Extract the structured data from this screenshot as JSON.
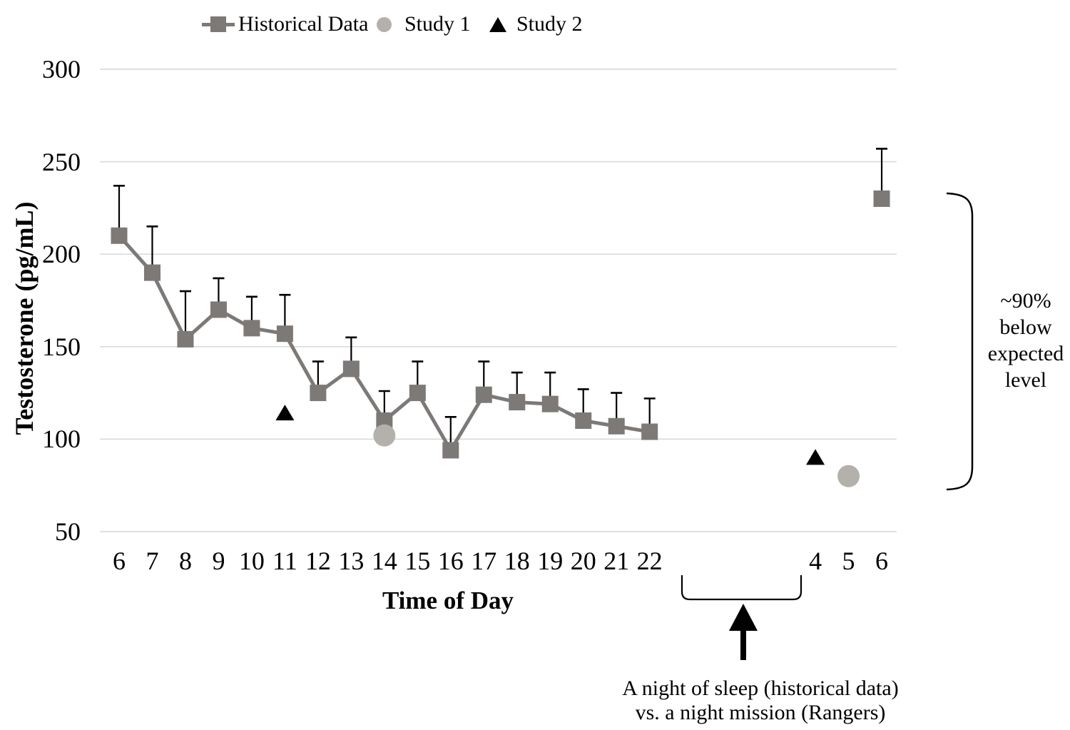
{
  "figure": {
    "legend": [
      {
        "label": "Historical Data",
        "marker": "square-with-line",
        "color": "#7c7977"
      },
      {
        "label": "Study 1",
        "marker": "circle",
        "color": "#b4b1ad"
      },
      {
        "label": "Study 2",
        "marker": "triangle",
        "color": "#000000"
      }
    ],
    "annotations": {
      "right_bracket_label_lines": [
        "~90%",
        "below",
        "expected",
        "level"
      ],
      "bottom_label_line1": "A night of sleep (historical data)",
      "bottom_label_line2": "vs. a night mission (Rangers)"
    }
  },
  "chart_data": {
    "type": "line",
    "title": "",
    "xlabel": "Time of Day",
    "ylabel": "Testosterone (pg/mL)",
    "ylim": [
      50,
      300
    ],
    "yticks": [
      300,
      250,
      200,
      150,
      100,
      50
    ],
    "grid": "horizontal-only",
    "legend_position": "top",
    "x_slots": [
      "6",
      "7",
      "8",
      "9",
      "10",
      "11",
      "12",
      "13",
      "14",
      "15",
      "16",
      "17",
      "18",
      "19",
      "20",
      "21",
      "22",
      "",
      "",
      "",
      "",
      "4",
      "5",
      "6"
    ],
    "colors": {
      "gridline": "#dbdbdb",
      "error_bar": "#000000"
    },
    "series": [
      {
        "name": "Historical Data",
        "marker": "square",
        "color": "#7c7977",
        "points": [
          {
            "slot": 0,
            "x": "6",
            "y": 210,
            "err_top": 237
          },
          {
            "slot": 1,
            "x": "7",
            "y": 190,
            "err_top": 215
          },
          {
            "slot": 2,
            "x": "8",
            "y": 154,
            "err_top": 180
          },
          {
            "slot": 3,
            "x": "9",
            "y": 170,
            "err_top": 187
          },
          {
            "slot": 4,
            "x": "10",
            "y": 160,
            "err_top": 177
          },
          {
            "slot": 5,
            "x": "11",
            "y": 157,
            "err_top": 178
          },
          {
            "slot": 6,
            "x": "12",
            "y": 125,
            "err_top": 142
          },
          {
            "slot": 7,
            "x": "13",
            "y": 138,
            "err_top": 155
          },
          {
            "slot": 8,
            "x": "14",
            "y": 110,
            "err_top": 126
          },
          {
            "slot": 9,
            "x": "15",
            "y": 125,
            "err_top": 142
          },
          {
            "slot": 10,
            "x": "16",
            "y": 94,
            "err_top": 112
          },
          {
            "slot": 11,
            "x": "17",
            "y": 124,
            "err_top": 142
          },
          {
            "slot": 12,
            "x": "18",
            "y": 120,
            "err_top": 136
          },
          {
            "slot": 13,
            "x": "19",
            "y": 119,
            "err_top": 136
          },
          {
            "slot": 14,
            "x": "20",
            "y": 110,
            "err_top": 127
          },
          {
            "slot": 15,
            "x": "21",
            "y": 107,
            "err_top": 125
          },
          {
            "slot": 16,
            "x": "22",
            "y": 104,
            "err_top": 122
          }
        ],
        "isolated_points": [
          {
            "slot": 23,
            "x": "6",
            "y": 230,
            "err_top": 257
          }
        ]
      },
      {
        "name": "Study 1",
        "marker": "circle",
        "color": "#b4b1ad",
        "points": [
          {
            "slot": 8,
            "x": "14",
            "y": 102
          },
          {
            "slot": 22,
            "x": "5",
            "y": 80
          }
        ]
      },
      {
        "name": "Study 2",
        "marker": "triangle",
        "color": "#000000",
        "points": [
          {
            "slot": 5,
            "x": "11",
            "y": 114
          },
          {
            "slot": 21,
            "x": "4",
            "y": 90
          }
        ]
      }
    ]
  }
}
